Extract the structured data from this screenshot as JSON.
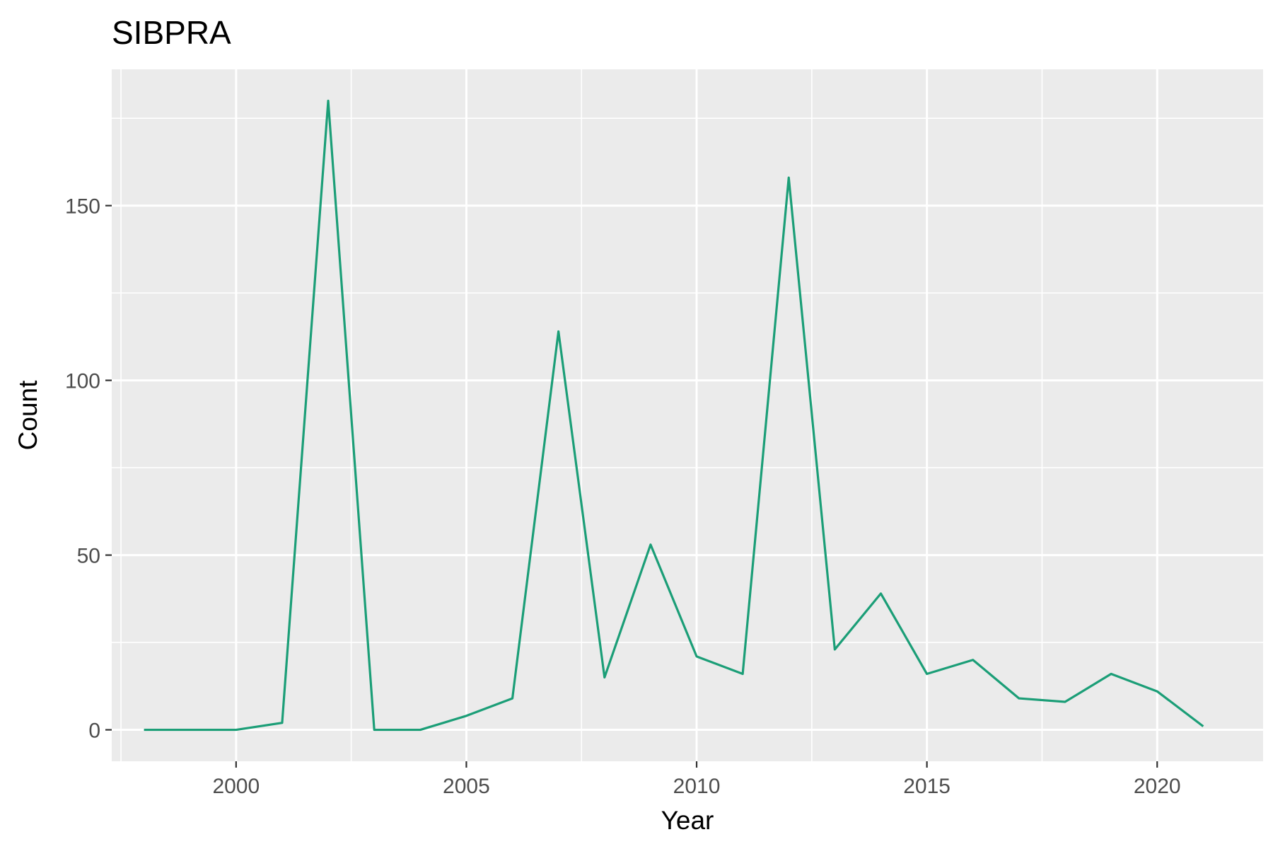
{
  "chart_data": {
    "type": "line",
    "title": "SIBPRA",
    "xlabel": "Year",
    "ylabel": "Count",
    "xlim": [
      1997.3,
      2022.3
    ],
    "ylim": [
      -9,
      189
    ],
    "x_ticks": [
      2000,
      2005,
      2010,
      2015,
      2020
    ],
    "x_tick_labels": [
      "2000",
      "2005",
      "2010",
      "2015",
      "2020"
    ],
    "y_ticks": [
      0,
      50,
      100,
      150
    ],
    "y_tick_labels": [
      "0",
      "50",
      "100",
      "150"
    ],
    "grid": true,
    "legend": "none",
    "series": [
      {
        "color": "#1b9e77",
        "x": [
          1998,
          1999,
          2000,
          2001,
          2002,
          2003,
          2004,
          2005,
          2006,
          2007,
          2008,
          2009,
          2010,
          2011,
          2012,
          2013,
          2014,
          2015,
          2016,
          2017,
          2018,
          2019,
          2020,
          2021
        ],
        "y": [
          0,
          0,
          0,
          2,
          180,
          0,
          0,
          4,
          9,
          114,
          15,
          53,
          21,
          16,
          158,
          23,
          39,
          16,
          20,
          9,
          8,
          16,
          11,
          1
        ]
      }
    ]
  },
  "colors": {
    "panel_background": "#ebebeb",
    "grid_major": "#ffffff",
    "grid_minor": "#f7f7f7",
    "tick_text": "#4d4d4d",
    "tick_mark": "#333333"
  }
}
